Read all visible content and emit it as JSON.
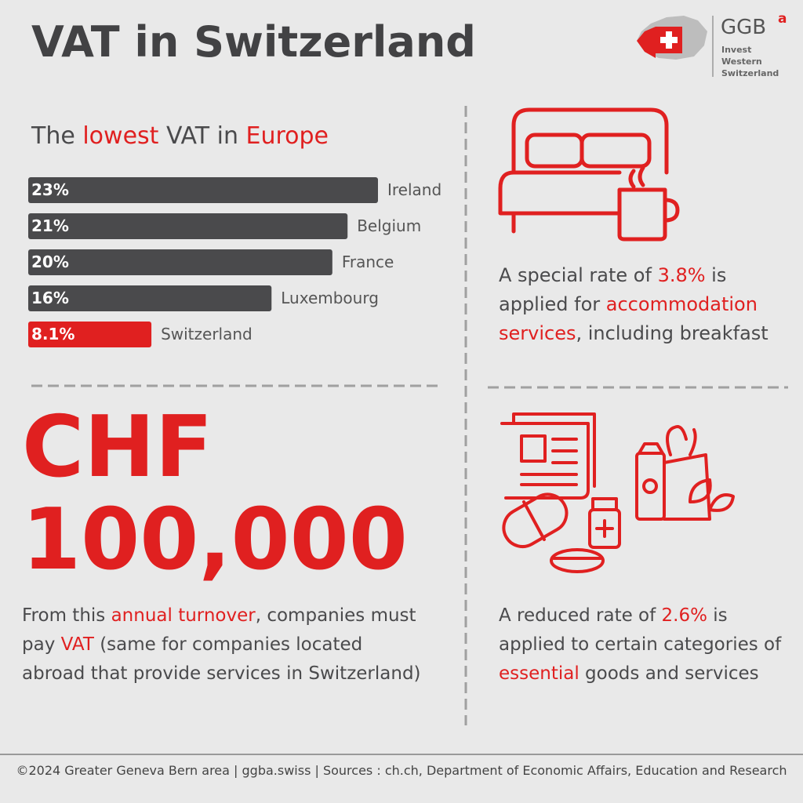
{
  "header": {
    "title": "VAT in Switzerland",
    "logo": {
      "name": "GGB",
      "superscript": "a",
      "tagline": [
        "Invest",
        "Western",
        "Switzerland"
      ]
    }
  },
  "chart_data": {
    "type": "bar",
    "orientation": "horizontal",
    "title_parts": [
      "The ",
      "lowest",
      " VAT in ",
      "Europe"
    ],
    "categories": [
      "Ireland",
      "Belgium",
      "France",
      "Luxembourg",
      "Switzerland"
    ],
    "values": [
      23,
      21,
      20,
      16,
      8.1
    ],
    "value_labels": [
      "23%",
      "21%",
      "20%",
      "16%",
      "8.1%"
    ],
    "colors": [
      "#4a4a4c",
      "#4a4a4c",
      "#4a4a4c",
      "#4a4a4c",
      "#e02020"
    ]
  },
  "accommodation": {
    "text": [
      "A special rate of ",
      "3.8%",
      " is applied for ",
      "accommodation services",
      ", including breakfast"
    ]
  },
  "threshold": {
    "currency": "CHF",
    "amount": "100,000",
    "text": [
      "From this ",
      "annual turnover",
      ", companies must pay ",
      "VAT",
      " (same for companies located abroad that provide services in Switzerland)"
    ]
  },
  "reduced": {
    "text": [
      "A reduced rate of ",
      "2.6%",
      " is applied to certain categories of ",
      "essential",
      " goods and services"
    ]
  },
  "footer": {
    "text": "©2024 Greater Geneva Bern area | ggba.swiss | Sources : ch.ch,  Department of Economic Affairs, Education and Research"
  }
}
